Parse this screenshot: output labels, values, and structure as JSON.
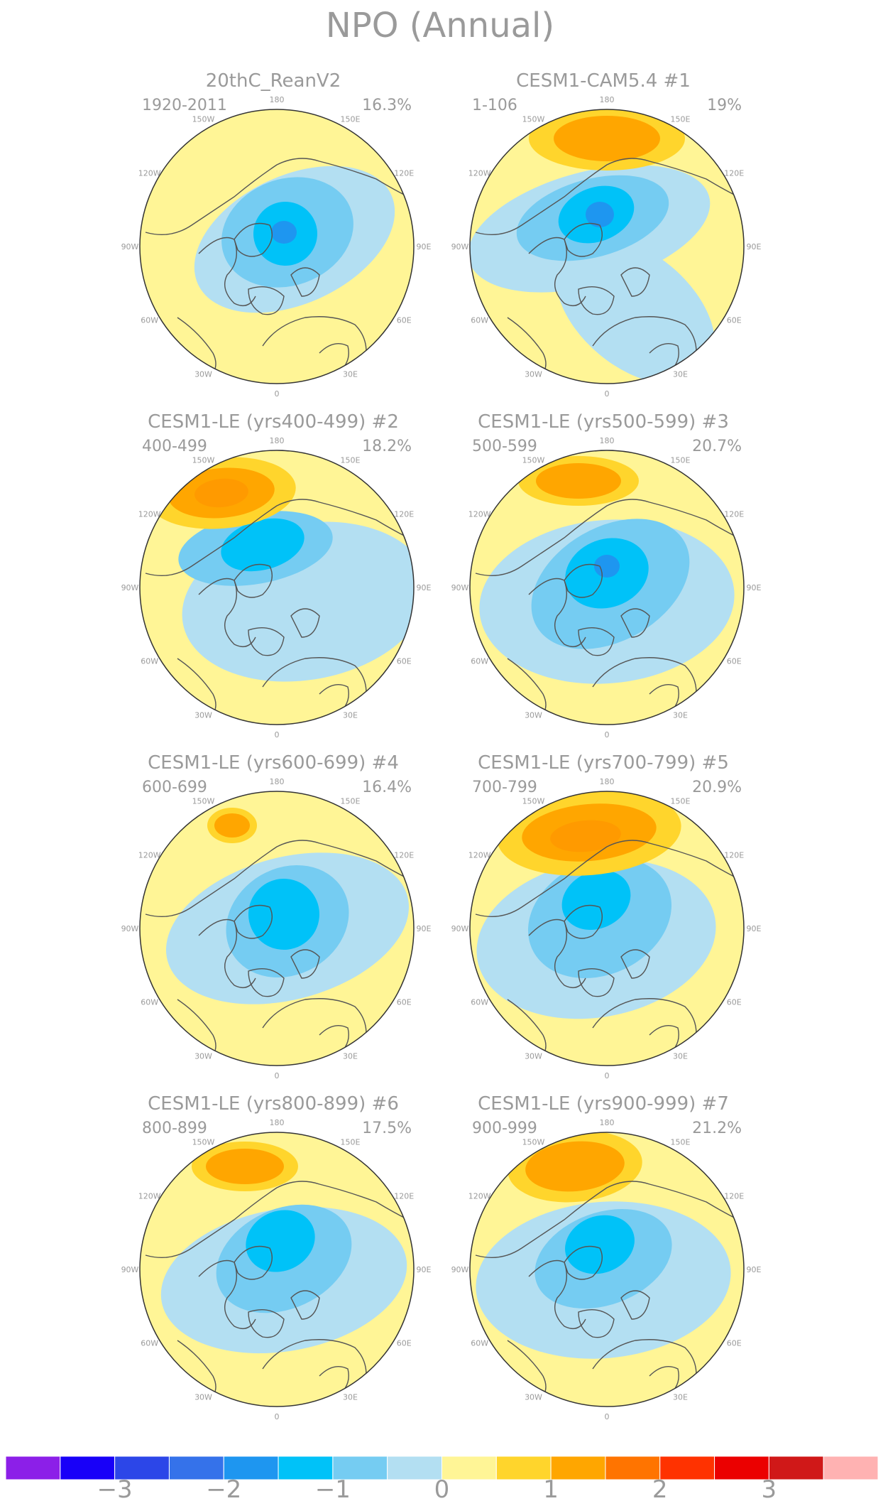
{
  "title": "NPO (Annual)",
  "lon_labels": [
    "180",
    "150E",
    "120E",
    "90E",
    "60E",
    "30E",
    "0",
    "30W",
    "60W",
    "90W",
    "120W",
    "150W"
  ],
  "panels": [
    {
      "name": "20thC_ReanV2",
      "run": "",
      "period": "1920-2011",
      "variance": "16.3%"
    },
    {
      "name": "CESM1-CAM5.4",
      "run": "#1",
      "period": "1-106",
      "variance": "19%"
    },
    {
      "name": "CESM1-LE (yrs400-499)",
      "run": "#2",
      "period": "400-499",
      "variance": "18.2%"
    },
    {
      "name": "CESM1-LE (yrs500-599)",
      "run": "#3",
      "period": "500-599",
      "variance": "20.7%"
    },
    {
      "name": "CESM1-LE (yrs600-699)",
      "run": "#4",
      "period": "600-699",
      "variance": "16.4%"
    },
    {
      "name": "CESM1-LE (yrs700-799)",
      "run": "#5",
      "period": "700-799",
      "variance": "20.9%"
    },
    {
      "name": "CESM1-LE (yrs800-899)",
      "run": "#6",
      "period": "800-899",
      "variance": "17.5%"
    },
    {
      "name": "CESM1-LE (yrs900-999)",
      "run": "#7",
      "period": "900-999",
      "variance": "21.2%"
    }
  ],
  "colorbar": {
    "colors": [
      "#8c1fe8",
      "#1800f8",
      "#2c46e8",
      "#3572ea",
      "#1e96f0",
      "#00c2f8",
      "#75ccf2",
      "#b3dff2",
      "#fff596",
      "#ffd52c",
      "#ffa600",
      "#ff7400",
      "#ff3200",
      "#eb0000",
      "#d01818",
      "#ffb2b2"
    ],
    "tick_labels": [
      "−3",
      "−2",
      "−1",
      "0",
      "1",
      "2",
      "3"
    ]
  },
  "map_colors": {
    "pos1": "#fff596",
    "pos2": "#ffd52c",
    "pos3": "#ffa600",
    "neg1": "#b3dff2",
    "neg2": "#75ccf2",
    "neg3": "#00c2f8",
    "neg4": "#1e96f0",
    "coast": "#555555",
    "rim": "#333333"
  }
}
